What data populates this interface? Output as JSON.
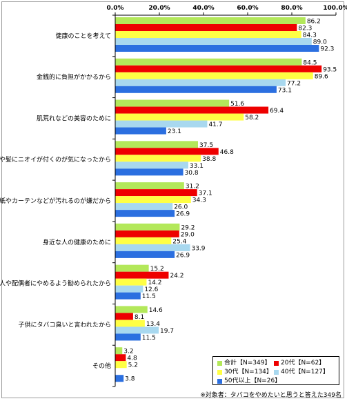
{
  "chart_data": {
    "type": "bar",
    "orientation": "horizontal",
    "xlim": [
      0,
      100
    ],
    "x_ticks": [
      "0.0%",
      "20.0%",
      "40.0%",
      "60.0%",
      "80.0%",
      "100.0%"
    ],
    "categories": [
      "健康のことを考えて",
      "金銭的に負担がかかるから",
      "肌荒れなどの美容のために",
      "服や髪にニオイが付くのが気になったから",
      "壁紙やカーテンなどが汚れるのが嫌だから",
      "身近な人の健康のために",
      "恋人や配偶者にやめるよう勧められたから",
      "子供にタバコ臭いと言われたから",
      "その他"
    ],
    "series": [
      {
        "name": "合計【N=349】",
        "color": "#b3e85a",
        "values": [
          86.2,
          84.5,
          51.6,
          37.5,
          31.2,
          29.2,
          15.2,
          14.6,
          3.2
        ]
      },
      {
        "name": "20代【N=62】",
        "color": "#ee0000",
        "values": [
          82.3,
          93.5,
          69.4,
          46.8,
          37.1,
          29.0,
          24.2,
          8.1,
          4.8
        ]
      },
      {
        "name": "30代【N=134】",
        "color": "#ffff44",
        "values": [
          84.3,
          89.6,
          58.2,
          38.8,
          34.3,
          25.4,
          14.2,
          13.4,
          5.2
        ]
      },
      {
        "name": "40代【N=127】",
        "color": "#a8d8ef",
        "values": [
          89.0,
          77.2,
          41.7,
          33.1,
          26.0,
          33.9,
          12.6,
          19.7,
          null
        ]
      },
      {
        "name": "50代以上【N=26】",
        "color": "#2b6fe0",
        "values": [
          92.3,
          73.1,
          23.1,
          30.8,
          26.9,
          26.9,
          11.5,
          11.5,
          3.8
        ]
      }
    ],
    "value_labels": [
      [
        "86.2",
        "84.5",
        "51.6",
        "37.5",
        "31.2",
        "29.2",
        "15.2",
        "14.6",
        "3.2"
      ],
      [
        "82.3",
        "93.5",
        "69.4",
        "46.8",
        "37.1",
        "29.0",
        "24.2",
        "8.1",
        "4.8"
      ],
      [
        "84.3",
        "89.6",
        "58.2",
        "38.8",
        "34.3",
        "25.4",
        "14.2",
        "13.4",
        "5.2"
      ],
      [
        "89.0",
        "77.2",
        "41.7",
        "33.1",
        "26.0",
        "33.9",
        "12.6",
        "19.7",
        ""
      ],
      [
        "92.3",
        "73.1",
        "23.1",
        "30.8",
        "26.9",
        "26.9",
        "11.5",
        "11.5",
        "3.8"
      ]
    ],
    "grid": false,
    "legend_position": "bottom-right"
  },
  "note": "※対象者：タバコをやめたいと思うと答えた349名"
}
